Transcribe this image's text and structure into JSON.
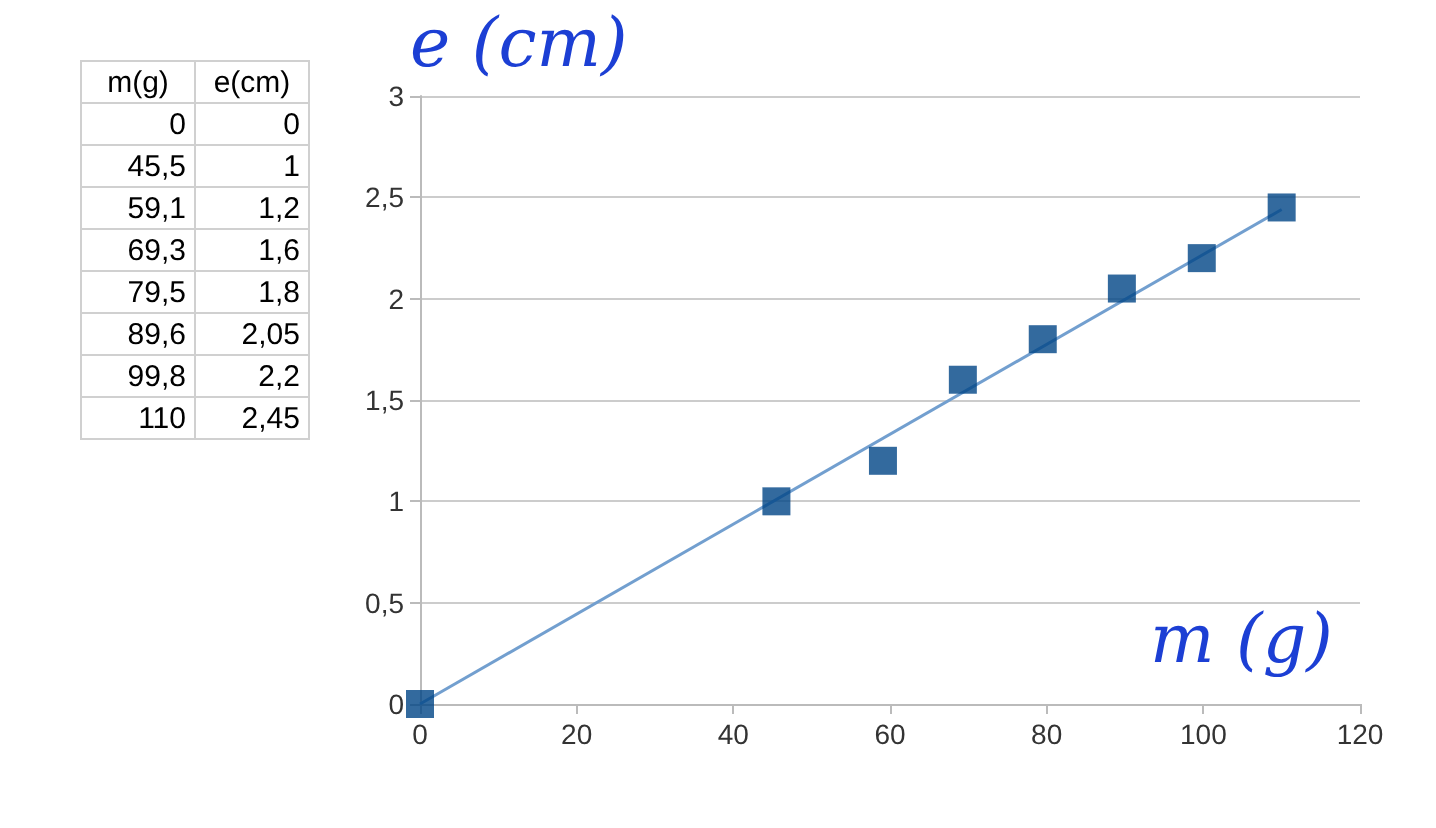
{
  "chart_data": [
    {
      "type": "other",
      "annotations": [
        "m(g)",
        "e(cm)",
        "0",
        "0",
        "45,5",
        "1",
        "59,1",
        "1,2",
        "69,3",
        "1,6",
        "79,5",
        "1,8",
        "89,6",
        "2,05",
        "99,8",
        "2,2",
        "110",
        "2,45"
      ]
    },
    {
      "type": "scatter",
      "xlabel": "m (g)",
      "ylabel": "e (cm)",
      "x": [
        0,
        45.5,
        59.1,
        69.3,
        79.5,
        89.6,
        99.8,
        110
      ],
      "series": [
        {
          "color": "#004586",
          "marker": "square",
          "values": [
            0,
            1,
            1.2,
            1.6,
            1.8,
            2.05,
            2.2,
            2.45
          ]
        },
        {
          "type": "line",
          "color": "#729fcf",
          "marker": "none",
          "x": [
            0,
            110
          ],
          "values": [
            0,
            2.44
          ]
        }
      ],
      "xlim": [
        0,
        120
      ],
      "xticks": [
        0,
        20,
        40,
        60,
        80,
        100,
        120
      ],
      "ylim": [
        0,
        3
      ],
      "yticks": [
        0,
        {
          "value": 0.5,
          "label": "0,5"
        },
        1,
        {
          "value": 1.5,
          "label": "1,5"
        },
        2,
        {
          "value": 2.5,
          "label": "2,5"
        },
        3
      ],
      "grid": "y"
    }
  ]
}
